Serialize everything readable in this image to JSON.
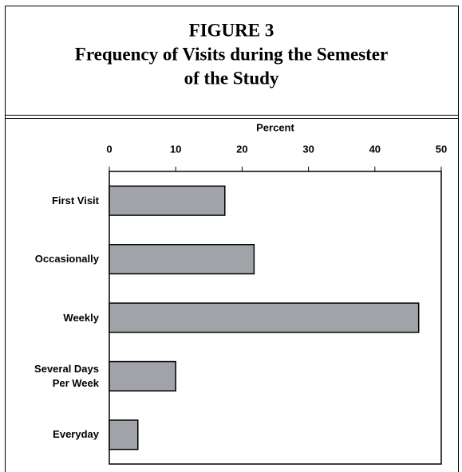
{
  "chart_data": {
    "type": "bar",
    "orientation": "horizontal",
    "title": [
      "FIGURE 3",
      "Frequency of Visits during the Semester",
      "of the Study"
    ],
    "xlabel": "Percent",
    "categories": [
      "First Visit",
      "Occasionally",
      "Weekly",
      "Several Days Per Week",
      "Everyday"
    ],
    "values": [
      17.4,
      21.8,
      46.6,
      10.0,
      4.3
    ],
    "color": "#a0a3a7",
    "xlim": [
      0,
      50
    ],
    "xticks": [
      0,
      10,
      20,
      30,
      40,
      50
    ]
  }
}
